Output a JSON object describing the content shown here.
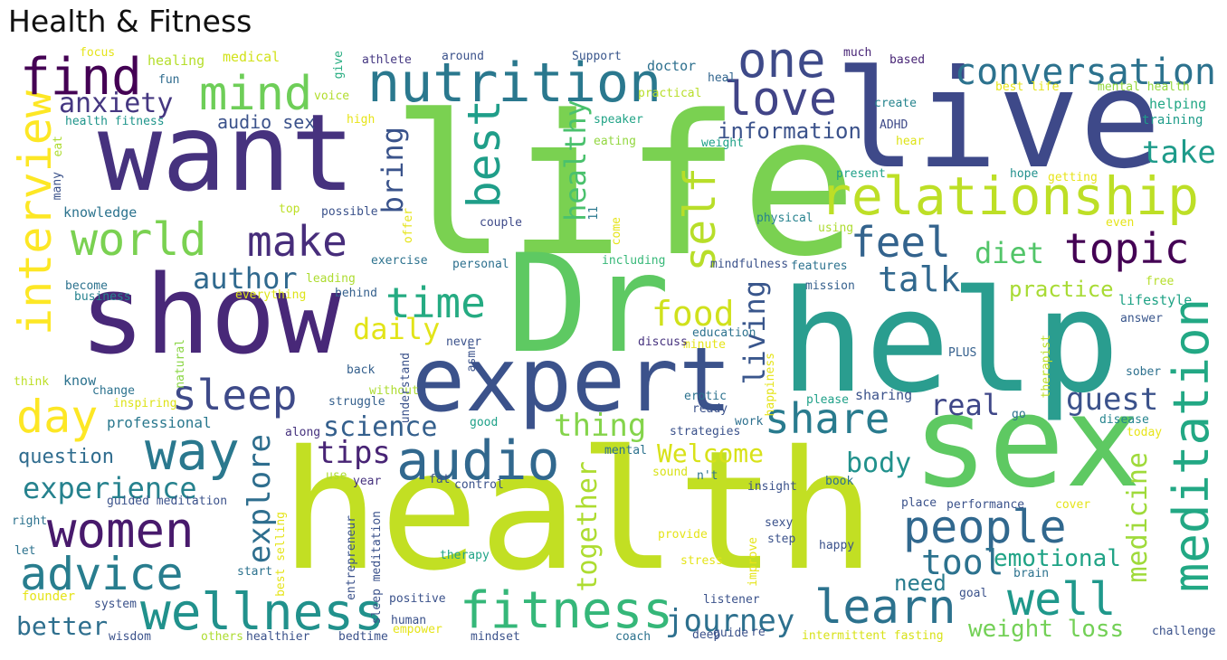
{
  "title": "Health & Fitness",
  "palette": "viridis",
  "words": [
    {
      "text": "life",
      "color": "#7ad151"
    },
    {
      "text": "health",
      "color": "#c2df23"
    },
    {
      "text": "help",
      "color": "#2a9d8f"
    },
    {
      "text": "Dr",
      "color": "#5ec962"
    },
    {
      "text": "live",
      "color": "#3e4989"
    },
    {
      "text": "sex",
      "color": "#5ec962"
    },
    {
      "text": "want",
      "color": "#46327e"
    },
    {
      "text": "show",
      "color": "#482878"
    },
    {
      "text": "expert",
      "color": "#3b528b"
    },
    {
      "text": "nutrition",
      "color": "#2a788e"
    },
    {
      "text": "relationship",
      "color": "#bddf26"
    },
    {
      "text": "wellness",
      "color": "#21918c"
    },
    {
      "text": "fitness",
      "color": "#35b779"
    },
    {
      "text": "meditation",
      "color": "#22a884"
    },
    {
      "text": "conversation",
      "color": "#2c728e"
    },
    {
      "text": "interview",
      "color": "#fde725"
    },
    {
      "text": "find",
      "color": "#440154"
    },
    {
      "text": "one",
      "color": "#3e4a89"
    },
    {
      "text": "mind",
      "color": "#6ece58"
    },
    {
      "text": "love",
      "color": "#414487"
    },
    {
      "text": "way",
      "color": "#2a788e"
    },
    {
      "text": "audio",
      "color": "#31688e"
    },
    {
      "text": "women",
      "color": "#481a6c"
    },
    {
      "text": "advice",
      "color": "#287d8e"
    },
    {
      "text": "people",
      "color": "#31688e"
    },
    {
      "text": "learn",
      "color": "#2c728e"
    },
    {
      "text": "well",
      "color": "#1f988b"
    },
    {
      "text": "world",
      "color": "#7ad151"
    },
    {
      "text": "make",
      "color": "#472d7b"
    },
    {
      "text": "time",
      "color": "#25ab82"
    },
    {
      "text": "share",
      "color": "#297b8e"
    },
    {
      "text": "sleep",
      "color": "#3e4a89"
    },
    {
      "text": "day",
      "color": "#fde725"
    },
    {
      "text": "topic",
      "color": "#440154"
    },
    {
      "text": "feel",
      "color": "#33638d"
    },
    {
      "text": "self",
      "color": "#b8de29"
    },
    {
      "text": "best",
      "color": "#1f9e89"
    },
    {
      "text": "anxiety",
      "color": "#453781"
    },
    {
      "text": "healthy",
      "color": "#4ac16d"
    },
    {
      "text": "diet",
      "color": "#52c569"
    },
    {
      "text": "take",
      "color": "#1e9b8a"
    },
    {
      "text": "talk",
      "color": "#31688e"
    },
    {
      "text": "food",
      "color": "#d0e11c"
    },
    {
      "text": "tool",
      "color": "#2c728e"
    },
    {
      "text": "medicine",
      "color": "#9fda3a"
    },
    {
      "text": "guest",
      "color": "#3b528b"
    },
    {
      "text": "real",
      "color": "#3f4788"
    },
    {
      "text": "practice",
      "color": "#a8db34"
    },
    {
      "text": "emotional",
      "color": "#20a386"
    },
    {
      "text": "journey",
      "color": "#2d708e"
    },
    {
      "text": "weight loss",
      "color": "#73d056"
    },
    {
      "text": "experience",
      "color": "#26828e"
    },
    {
      "text": "explore",
      "color": "#2e6e8e"
    },
    {
      "text": "tips",
      "color": "#482475"
    },
    {
      "text": "science",
      "color": "#35608d"
    },
    {
      "text": "thing",
      "color": "#84d44b"
    },
    {
      "text": "Welcome",
      "color": "#d8e219"
    },
    {
      "text": "body",
      "color": "#21918c"
    },
    {
      "text": "together",
      "color": "#addc30"
    },
    {
      "text": "living",
      "color": "#39568c"
    },
    {
      "text": "author",
      "color": "#30698e"
    },
    {
      "text": "bring",
      "color": "#3a538b"
    },
    {
      "text": "daily",
      "color": "#e2e418"
    },
    {
      "text": "information",
      "color": "#3b528b"
    },
    {
      "text": "audio sex",
      "color": "#3b528b"
    },
    {
      "text": "better",
      "color": "#2e6f8e"
    },
    {
      "text": "need",
      "color": "#287c8e"
    },
    {
      "text": "question",
      "color": "#2f6c8e"
    },
    {
      "text": "professional",
      "color": "#2a788e"
    },
    {
      "text": "knowledge",
      "color": "#2c738e"
    },
    {
      "text": "doctor",
      "color": "#2d708e"
    },
    {
      "text": "focus",
      "color": "#e5e419"
    },
    {
      "text": "healing",
      "color": "#b5de2b"
    },
    {
      "text": "medical",
      "color": "#d2e21b"
    },
    {
      "text": "fun",
      "color": "#2f6b8e"
    },
    {
      "text": "health fitness",
      "color": "#1f958b"
    },
    {
      "text": "athlete",
      "color": "#453882"
    },
    {
      "text": "around",
      "color": "#3b528b"
    },
    {
      "text": "give",
      "color": "#27ad81"
    },
    {
      "text": "voice",
      "color": "#b2dd2d"
    },
    {
      "text": "Support",
      "color": "#39568c"
    },
    {
      "text": "much",
      "color": "#482576"
    },
    {
      "text": "based",
      "color": "#482576"
    },
    {
      "text": "create",
      "color": "#25848e"
    },
    {
      "text": "best life",
      "color": "#e5e419"
    },
    {
      "text": "mental health",
      "color": "#95d840"
    },
    {
      "text": "helping",
      "color": "#22a785"
    },
    {
      "text": "training",
      "color": "#1e9c89"
    },
    {
      "text": "speaker",
      "color": "#20a386"
    },
    {
      "text": "eating",
      "color": "#93d741"
    },
    {
      "text": "weight",
      "color": "#1fa188"
    },
    {
      "text": "heal",
      "color": "#32658e"
    },
    {
      "text": "practical",
      "color": "#b8de29"
    },
    {
      "text": "ADHD",
      "color": "#3e4a89"
    },
    {
      "text": "hear",
      "color": "#dde318"
    },
    {
      "text": "present",
      "color": "#1fa088"
    },
    {
      "text": "hope",
      "color": "#21908d"
    },
    {
      "text": "getting",
      "color": "#e7e419"
    },
    {
      "text": "high",
      "color": "#e7e419"
    },
    {
      "text": "possible",
      "color": "#3b528b"
    },
    {
      "text": "couple",
      "color": "#3e4a89"
    },
    {
      "text": "physical",
      "color": "#26828e"
    },
    {
      "text": "using",
      "color": "#addc30"
    },
    {
      "text": "even",
      "color": "#e5e419"
    },
    {
      "text": "top",
      "color": "#bddf26"
    },
    {
      "text": "11",
      "color": "#2a788e"
    },
    {
      "text": "offer",
      "color": "#e5e419"
    },
    {
      "text": "come",
      "color": "#e5e419"
    },
    {
      "text": "leading",
      "color": "#addc30"
    },
    {
      "text": "exercise",
      "color": "#2c728e"
    },
    {
      "text": "personal",
      "color": "#2d708e"
    },
    {
      "text": "including",
      "color": "#37b878"
    },
    {
      "text": "mindfulness",
      "color": "#3b528b"
    },
    {
      "text": "features",
      "color": "#2c728e"
    },
    {
      "text": "free",
      "color": "#b5de2b"
    },
    {
      "text": "mission",
      "color": "#35608d"
    },
    {
      "text": "become",
      "color": "#2c728e"
    },
    {
      "text": "business",
      "color": "#26828e"
    },
    {
      "text": "everything",
      "color": "#dde318"
    },
    {
      "text": "behind",
      "color": "#35608d"
    },
    {
      "text": "lifestyle",
      "color": "#20a386"
    },
    {
      "text": "answer",
      "color": "#39568c"
    },
    {
      "text": "education",
      "color": "#2c728e"
    },
    {
      "text": "minute",
      "color": "#e5e419"
    },
    {
      "text": "discuss",
      "color": "#46327e"
    },
    {
      "text": "never",
      "color": "#3b528b"
    },
    {
      "text": "asmr",
      "color": "#3b528b"
    },
    {
      "text": "happiness",
      "color": "#e5e419"
    },
    {
      "text": "PLUS",
      "color": "#35608d"
    },
    {
      "text": "therapist",
      "color": "#bddf26"
    },
    {
      "text": "sober",
      "color": "#2d708e"
    },
    {
      "text": "think",
      "color": "#bddf26"
    },
    {
      "text": "know",
      "color": "#2c728e"
    },
    {
      "text": "change",
      "color": "#2c728e"
    },
    {
      "text": "natural",
      "color": "#8bd646"
    },
    {
      "text": "back",
      "color": "#35608d"
    },
    {
      "text": "without",
      "color": "#addc30"
    },
    {
      "text": "understand",
      "color": "#3b528b"
    },
    {
      "text": "struggle",
      "color": "#35608d"
    },
    {
      "text": "erotic",
      "color": "#2c728e"
    },
    {
      "text": "ready",
      "color": "#3b528b"
    },
    {
      "text": "please",
      "color": "#1fa088"
    },
    {
      "text": "sharing",
      "color": "#3b528b"
    },
    {
      "text": "go",
      "color": "#2c728e"
    },
    {
      "text": "disease",
      "color": "#25848e"
    },
    {
      "text": "today",
      "color": "#e7e419"
    },
    {
      "text": "inspiring",
      "color": "#dde318"
    },
    {
      "text": "along",
      "color": "#46327e"
    },
    {
      "text": "good",
      "color": "#1fa188"
    },
    {
      "text": "strategies",
      "color": "#3b528b"
    },
    {
      "text": "work",
      "color": "#2d708e"
    },
    {
      "text": "mental",
      "color": "#2c728e"
    },
    {
      "text": "sound",
      "color": "#d8e219"
    },
    {
      "text": "n't",
      "color": "#2c728e"
    },
    {
      "text": "use",
      "color": "#addc30"
    },
    {
      "text": "year",
      "color": "#46327e"
    },
    {
      "text": "fat",
      "color": "#3b528b"
    },
    {
      "text": "control",
      "color": "#3b528b"
    },
    {
      "text": "insight",
      "color": "#3b528b"
    },
    {
      "text": "book",
      "color": "#2d708e"
    },
    {
      "text": "guided meditation",
      "color": "#3b528b"
    },
    {
      "text": "right",
      "color": "#2c728e"
    },
    {
      "text": "let",
      "color": "#2c728e"
    },
    {
      "text": "start",
      "color": "#2c728e"
    },
    {
      "text": "founder",
      "color": "#e5e419"
    },
    {
      "text": "system",
      "color": "#3b528b"
    },
    {
      "text": "wisdom",
      "color": "#3b528b"
    },
    {
      "text": "others",
      "color": "#addc30"
    },
    {
      "text": "healthier",
      "color": "#3b528b"
    },
    {
      "text": "bedtime",
      "color": "#3b528b"
    },
    {
      "text": "empower",
      "color": "#e5e419"
    },
    {
      "text": "mindset",
      "color": "#3b528b"
    },
    {
      "text": "coach",
      "color": "#2c728e"
    },
    {
      "text": "deep",
      "color": "#3b528b"
    },
    {
      "text": "guide",
      "color": "#3b528b"
    },
    {
      "text": "intermittent fasting",
      "color": "#d8e219"
    },
    {
      "text": "challenge",
      "color": "#3b528b"
    },
    {
      "text": "best selling",
      "color": "#e5e419"
    },
    {
      "text": "entrepreneur",
      "color": "#3b528b"
    },
    {
      "text": "sleep meditation",
      "color": "#3b528b"
    },
    {
      "text": "positive",
      "color": "#3b528b"
    },
    {
      "text": "human",
      "color": "#3b528b"
    },
    {
      "text": "therapy",
      "color": "#20a386"
    },
    {
      "text": "provide",
      "color": "#e5e419"
    },
    {
      "text": "stress",
      "color": "#e5e419"
    },
    {
      "text": "improve",
      "color": "#e5e419"
    },
    {
      "text": "listener",
      "color": "#3b528b"
    },
    {
      "text": "sexy",
      "color": "#3b528b"
    },
    {
      "text": "step",
      "color": "#3b528b"
    },
    {
      "text": "happy",
      "color": "#3b528b"
    },
    {
      "text": "brain",
      "color": "#2c728e"
    },
    {
      "text": "place",
      "color": "#3b528b"
    },
    {
      "text": "performance",
      "color": "#3b528b"
    },
    {
      "text": "cover",
      "color": "#e5e419"
    },
    {
      "text": "goal",
      "color": "#3b528b"
    },
    {
      "text": "many",
      "color": "#3b528b"
    },
    {
      "text": "eat",
      "color": "#addc30"
    },
    {
      "text": "re",
      "color": "#3b528b"
    }
  ]
}
